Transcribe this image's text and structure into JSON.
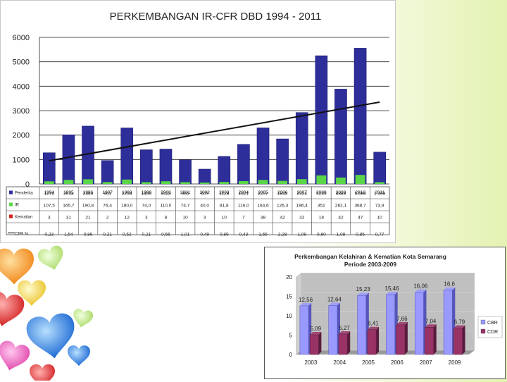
{
  "chart_data": [
    {
      "type": "bar",
      "title": "PERKEMBANGAN IR-CFR DBD 1994 -   2011",
      "categories": [
        "1994",
        "1995",
        "1996",
        "1997",
        "1998",
        "1999",
        "2000",
        "2001",
        "2002",
        "2003",
        "2004",
        "2005",
        "2006",
        "2007",
        "2008",
        "2009",
        "2010",
        "2011"
      ],
      "ylim": [
        0,
        6000
      ],
      "yticks": [
        0,
        1000,
        2000,
        3000,
        4000,
        5000,
        6000
      ],
      "grid": true,
      "series": [
        {
          "name": "Penderita",
          "color": "#2e2e9a",
          "values": [
            1278,
            2013,
            2369,
            961,
            2294,
            1400,
            1428,
            986,
            607,
            1128,
            1621,
            2297,
            1845,
            2924,
            5249,
            3883,
            5556,
            1303
          ],
          "labels": [
            "1278",
            "2013",
            "2369",
            "961",
            "2294",
            "1400",
            "1428",
            "986",
            "607",
            "1128",
            "1621",
            "2297",
            "1845",
            "2924",
            "5249",
            "3883",
            "5.556",
            "1.303"
          ]
        },
        {
          "name": "IR",
          "color": "#5ad648",
          "values": [
            107.5,
            165.7,
            190.8,
            76.4,
            180.0,
            74.0,
            110.0,
            74.7,
            40.0,
            81.8,
            116.0,
            164.6,
            126.3,
            196.4,
            351,
            262.1,
            368.7,
            73.9
          ],
          "labels": [
            "107,5",
            "165,7",
            "190,8",
            "76,4",
            "180,0",
            "74,0",
            "110,0",
            "74,7",
            "40,0",
            "81,8",
            "116,0",
            "164,6",
            "126,3",
            "196,4",
            "351",
            "262,1",
            "368,7",
            "73,9"
          ]
        },
        {
          "name": "Kematian",
          "color": "#d62020",
          "values": [
            3,
            31,
            21,
            2,
            12,
            3,
            8,
            10,
            3,
            10,
            7,
            38,
            42,
            32,
            18,
            42,
            47,
            10
          ],
          "labels": [
            "3",
            "31",
            "21",
            "2",
            "12",
            "3",
            "8",
            "10",
            "3",
            "10",
            "7",
            "38",
            "42",
            "32",
            "18",
            "42",
            "47",
            "10"
          ]
        },
        {
          "name": "CFR %",
          "color": "#202020",
          "values": [
            0.23,
            1.54,
            0.89,
            0.21,
            0.52,
            0.21,
            0.56,
            1.01,
            0.49,
            0.89,
            0.43,
            1.65,
            2.28,
            1.09,
            0.6,
            1.08,
            0.85,
            0.77
          ],
          "labels": [
            "0,23",
            "1,54",
            "0,89",
            "0,21",
            "0,52",
            "0,21",
            "0,56",
            "1,01",
            "0,49",
            "0,89",
            "0,43",
            "1,65",
            "2,28",
            "1,09",
            "0,60",
            "1,08",
            "0,85",
            "0,77"
          ]
        }
      ],
      "trendline": {
        "series": "Penderita",
        "from": 950,
        "to": 3350
      },
      "table_below": true
    },
    {
      "type": "bar",
      "title": "Perkembangan Kelahiran & Kematian Kota Semarang",
      "subtitle": "Periode 2003-2009",
      "categories": [
        "2003",
        "2004",
        "2005",
        "2006",
        "2007",
        "2009"
      ],
      "ylim": [
        0,
        20
      ],
      "yticks": [
        0,
        5,
        10,
        15,
        20
      ],
      "legend": "right",
      "series": [
        {
          "name": "CBR",
          "color": "#9999ff",
          "values": [
            12.56,
            12.64,
            15.23,
            15.46,
            16.06,
            16.6
          ],
          "labels": [
            "12,56",
            "12,64",
            "15,23",
            "15,46",
            "16,06",
            "16,6"
          ]
        },
        {
          "name": "CDR",
          "color": "#993366",
          "values": [
            5.09,
            5.27,
            6.41,
            7.66,
            7.04,
            6.79
          ],
          "labels": [
            "5,09",
            "5,27",
            "6,41",
            "7,66",
            "7,04",
            "6,79"
          ]
        }
      ]
    }
  ]
}
